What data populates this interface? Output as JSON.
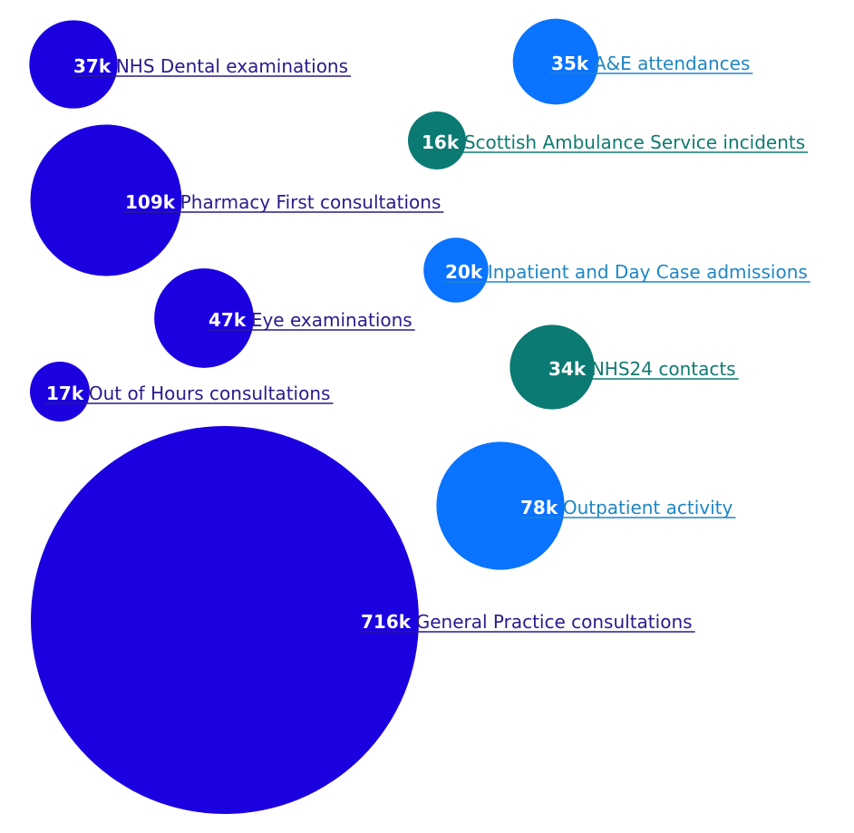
{
  "chart_data": {
    "type": "bubble",
    "title": "",
    "colors": {
      "primary_care": "#1b00e0",
      "secondary_care": "#0a73ff",
      "urgent_care": "#0a7a72",
      "primary_care_text": "#2a1a8c",
      "secondary_care_text": "#1f86c4",
      "urgent_care_text": "#0f7a70"
    },
    "items": [
      {
        "value": 37,
        "value_label": "37k",
        "label": "NHS Dental examinations",
        "group": "primary_care"
      },
      {
        "value": 109,
        "value_label": "109k",
        "label": "Pharmacy First consultations",
        "group": "primary_care"
      },
      {
        "value": 47,
        "value_label": "47k",
        "label": "Eye examinations",
        "group": "primary_care"
      },
      {
        "value": 17,
        "value_label": "17k",
        "label": "Out of Hours consultations",
        "group": "primary_care"
      },
      {
        "value": 716,
        "value_label": "716k",
        "label": "General Practice consultations",
        "group": "primary_care"
      },
      {
        "value": 35,
        "value_label": "35k",
        "label": "A&E attendances",
        "group": "secondary_care"
      },
      {
        "value": 16,
        "value_label": "16k",
        "label": "Scottish Ambulance Service incidents",
        "group": "urgent_care"
      },
      {
        "value": 20,
        "value_label": "20k",
        "label": "Inpatient and Day Case admissions",
        "group": "secondary_care"
      },
      {
        "value": 34,
        "value_label": "34k",
        "label": "NHS24 contacts",
        "group": "urgent_care"
      },
      {
        "value": 78,
        "value_label": "78k",
        "label": "Outpatient activity",
        "group": "secondary_care"
      }
    ]
  }
}
